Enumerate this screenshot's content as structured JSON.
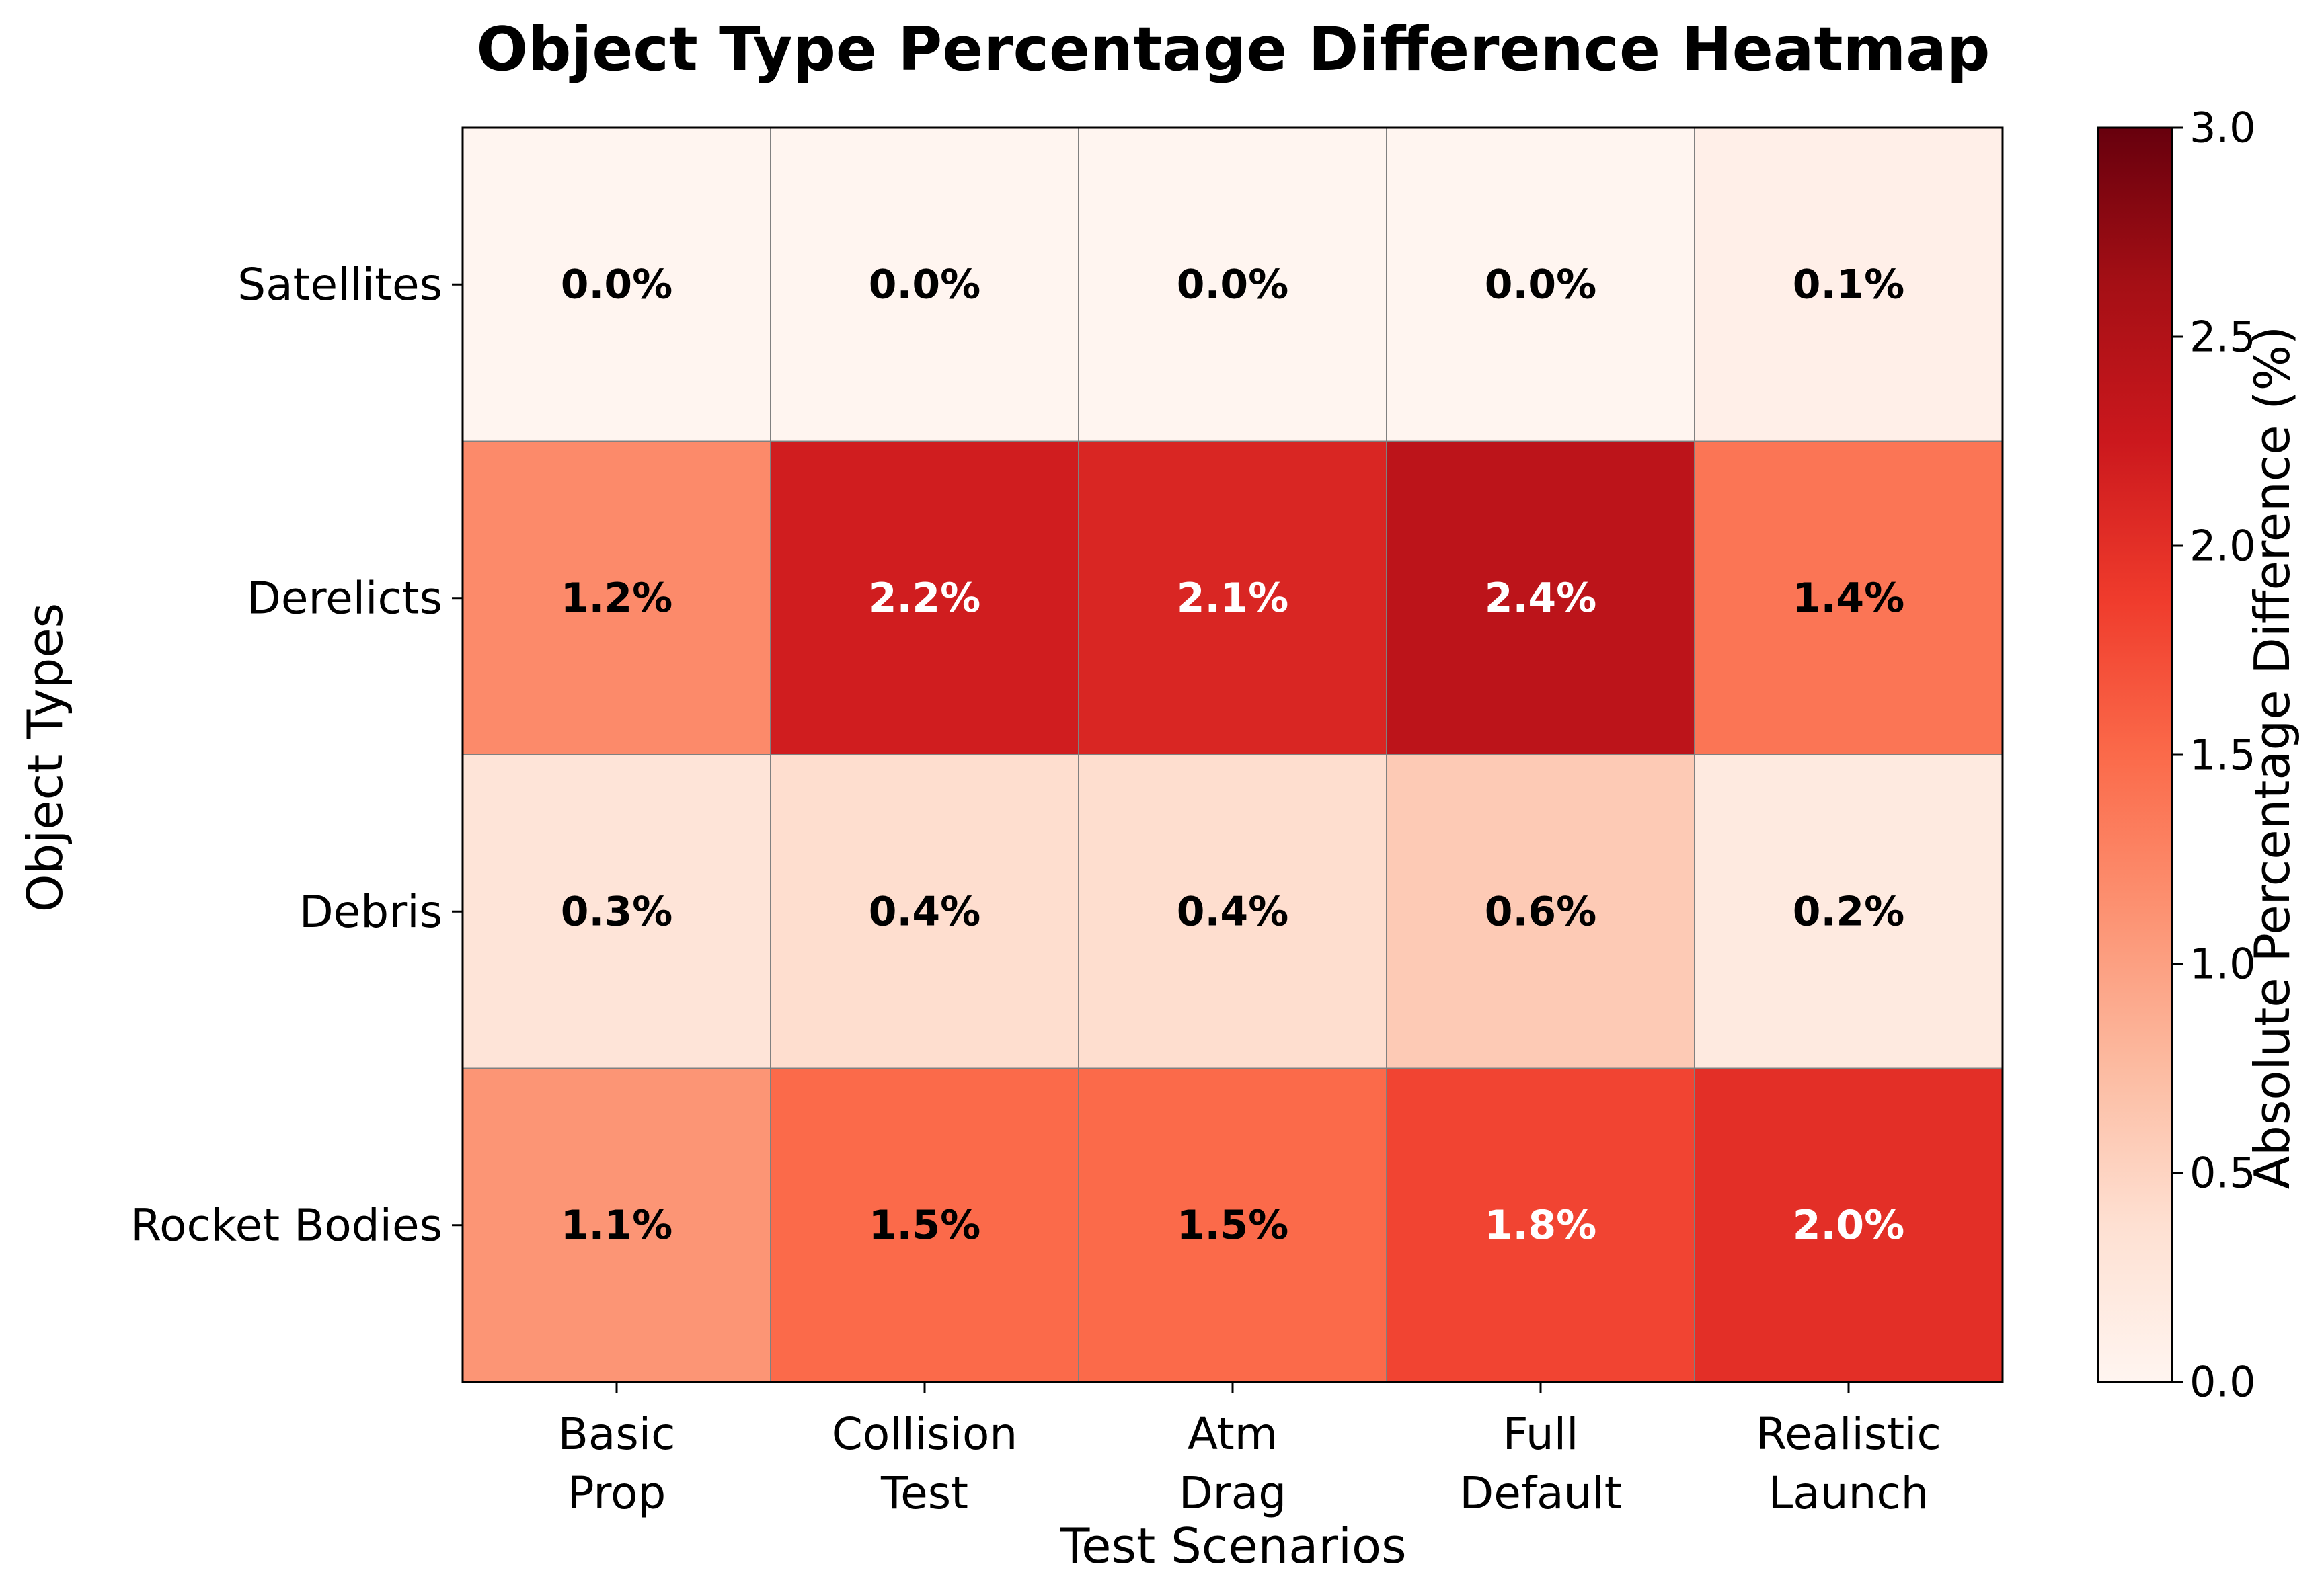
{
  "chart_data": {
    "type": "heatmap",
    "title": "Object Type Percentage Difference Heatmap",
    "xlabel": "Test Scenarios",
    "ylabel": "Object Types",
    "x_categories": [
      [
        "Basic",
        "Prop"
      ],
      [
        "Collision",
        "Test"
      ],
      [
        "Atm",
        "Drag"
      ],
      [
        "Full",
        "Default"
      ],
      [
        "Realistic",
        "Launch"
      ]
    ],
    "y_categories": [
      "Satellites",
      "Derelicts",
      "Debris",
      "Rocket Bodies"
    ],
    "values": [
      [
        0.0,
        0.0,
        0.0,
        0.0,
        0.1
      ],
      [
        1.2,
        2.2,
        2.1,
        2.4,
        1.4
      ],
      [
        0.3,
        0.4,
        0.4,
        0.6,
        0.2
      ],
      [
        1.1,
        1.5,
        1.5,
        1.8,
        2.0
      ]
    ],
    "cell_labels": [
      [
        "0.0%",
        "0.0%",
        "0.0%",
        "0.0%",
        "0.1%"
      ],
      [
        "1.2%",
        "2.2%",
        "2.1%",
        "2.4%",
        "1.4%"
      ],
      [
        "0.3%",
        "0.4%",
        "0.4%",
        "0.6%",
        "0.2%"
      ],
      [
        "1.1%",
        "1.5%",
        "1.5%",
        "1.8%",
        "2.0%"
      ]
    ],
    "colorbar": {
      "label": "Absolute Percentage Difference (%)",
      "range": [
        0.0,
        3.0
      ],
      "ticks": [
        0.0,
        0.5,
        1.0,
        1.5,
        2.0,
        2.5,
        3.0
      ],
      "tick_labels": [
        "0.0",
        "0.5",
        "1.0",
        "1.5",
        "2.0",
        "2.5",
        "3.0"
      ],
      "colormap": "Reds",
      "color_stops": [
        "#fff5f0",
        "#fee0d2",
        "#fcbba1",
        "#fc9272",
        "#fb6a4a",
        "#ef3b2c",
        "#cb181d",
        "#a50f15",
        "#67000d"
      ]
    },
    "text_colors": {
      "dark": "#000000",
      "light": "#ffffff"
    },
    "grid_color": "#808080"
  }
}
